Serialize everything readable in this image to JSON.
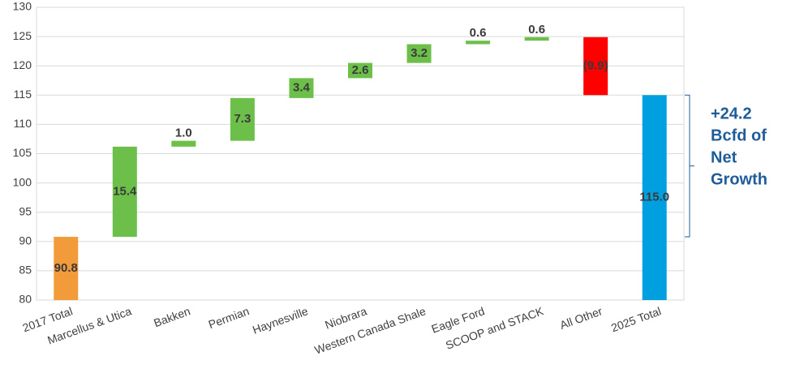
{
  "chart_data": {
    "type": "waterfall",
    "categories": [
      "2017 Total",
      "Marcellus & Utica",
      "Bakken",
      "Permian",
      "Haynesville",
      "Niobrara",
      "Western Canada Shale",
      "Eagle Ford",
      "SCOOP and STACK",
      "All Other",
      "2025 Total"
    ],
    "values": [
      90.8,
      15.4,
      1.0,
      7.3,
      3.4,
      2.6,
      3.2,
      0.6,
      0.6,
      -9.9,
      115.0
    ],
    "value_labels": [
      "90.8",
      "15.4",
      "1.0",
      "7.3",
      "3.4",
      "2.6",
      "3.2",
      "0.6",
      "0.6",
      "(9.9)",
      "115.0"
    ],
    "kinds": [
      "total",
      "step",
      "step",
      "step",
      "step",
      "step",
      "step",
      "step",
      "step",
      "step",
      "total"
    ],
    "colors": [
      "#f29b3a",
      "#6cc04a",
      "#6cc04a",
      "#6cc04a",
      "#6cc04a",
      "#6cc04a",
      "#6cc04a",
      "#6cc04a",
      "#6cc04a",
      "#ff0000",
      "#00a0e0"
    ],
    "ylim": [
      80,
      130
    ],
    "yticks": [
      80,
      85,
      90,
      95,
      100,
      105,
      110,
      115,
      120,
      125,
      130
    ],
    "grid": true,
    "annotation": [
      "+24.2",
      "Bcfd of",
      "Net",
      "Growth"
    ]
  }
}
